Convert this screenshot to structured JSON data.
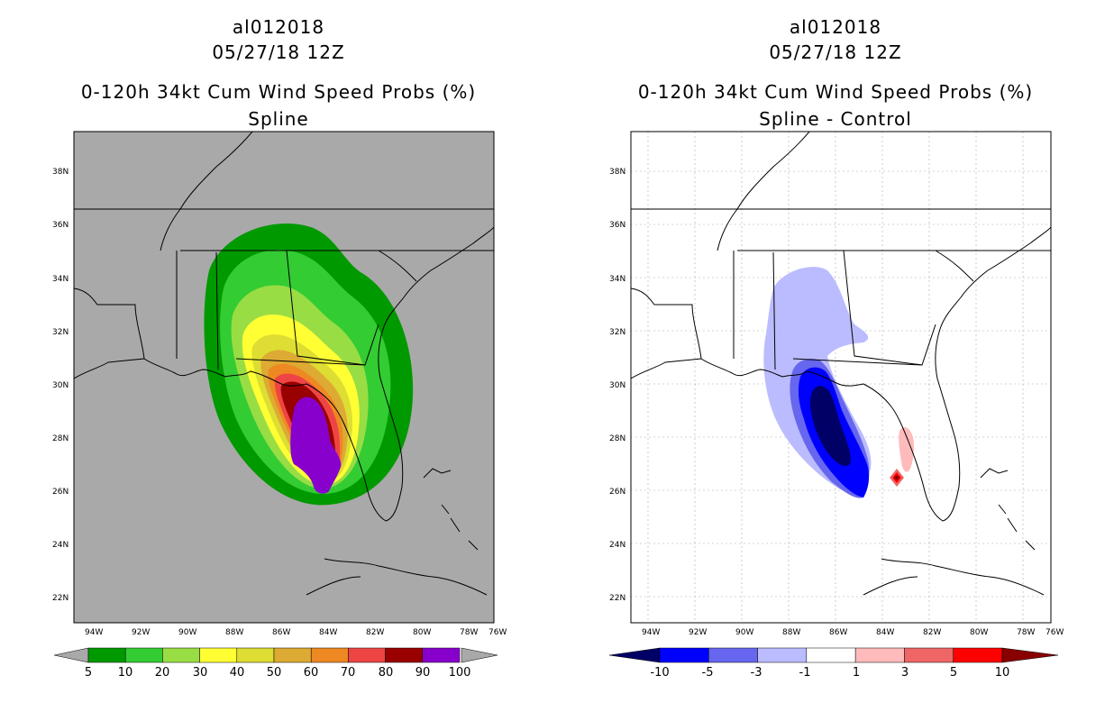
{
  "left": {
    "title_line1": "al012018",
    "title_line2": "05/27/18 12Z",
    "title_line3": "0-120h 34kt Cum Wind Speed Probs (%)",
    "title_line4": "Spline",
    "colorbar_labels": [
      "5",
      "10",
      "20",
      "30",
      "40",
      "50",
      "60",
      "70",
      "80",
      "90",
      "100"
    ],
    "colorbar_colors": [
      "#009900",
      "#33cc33",
      "#99dd44",
      "#ffff33",
      "#dddd33",
      "#ddaa33",
      "#ee8822",
      "#ee4444",
      "#990000",
      "#8800cc"
    ]
  },
  "right": {
    "title_line1": "al012018",
    "title_line2": "05/27/18 12Z",
    "title_line3": "0-120h 34kt Cum Wind Speed Probs (%)",
    "title_line4": "Spline - Control",
    "colorbar_labels": [
      "-10",
      "-5",
      "-3",
      "-1",
      "1",
      "3",
      "5",
      "10"
    ],
    "colorbar_colors": [
      "#000066",
      "#0000ff",
      "#6666ee",
      "#bbbbff",
      "#ffffff",
      "#ffbbbb",
      "#ee6666",
      "#ff0000",
      "#880000"
    ]
  },
  "axes": {
    "lat_labels": [
      "38N",
      "36N",
      "34N",
      "32N",
      "30N",
      "28N",
      "26N",
      "24N",
      "22N"
    ],
    "lon_labels": [
      "94W",
      "92W",
      "90W",
      "88W",
      "86W",
      "84W",
      "82W",
      "80W",
      "78W",
      "76W"
    ]
  }
}
